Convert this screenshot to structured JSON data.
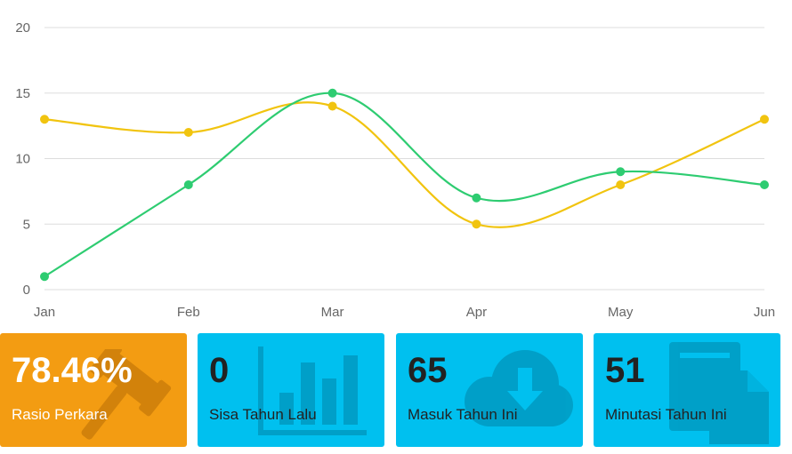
{
  "chart_data": {
    "type": "line",
    "categories": [
      "Jan",
      "Feb",
      "Mar",
      "Apr",
      "May",
      "Jun"
    ],
    "y_ticks": [
      "0",
      "5",
      "10",
      "15",
      "20"
    ],
    "ylim": [
      0,
      20
    ],
    "grid": true,
    "series": [
      {
        "color": "#f1c40f",
        "values": [
          13,
          12,
          14,
          5,
          8,
          13
        ]
      },
      {
        "color": "#2ecc71",
        "values": [
          1,
          8,
          15,
          7,
          9,
          8
        ]
      }
    ]
  },
  "cards": [
    {
      "value": "78.46%",
      "label": "Rasio Perkara",
      "color": "#f39c12",
      "icon": "gavel-icon"
    },
    {
      "value": "0",
      "label": "Sisa Tahun Lalu",
      "color": "#00c0ef",
      "icon": "bar-chart-icon"
    },
    {
      "value": "65",
      "label": "Masuk Tahun Ini",
      "color": "#00c0ef",
      "icon": "cloud-download-icon"
    },
    {
      "value": "51",
      "label": "Minutasi Tahun Ini",
      "color": "#00c0ef",
      "icon": "copy-file-icon"
    }
  ]
}
